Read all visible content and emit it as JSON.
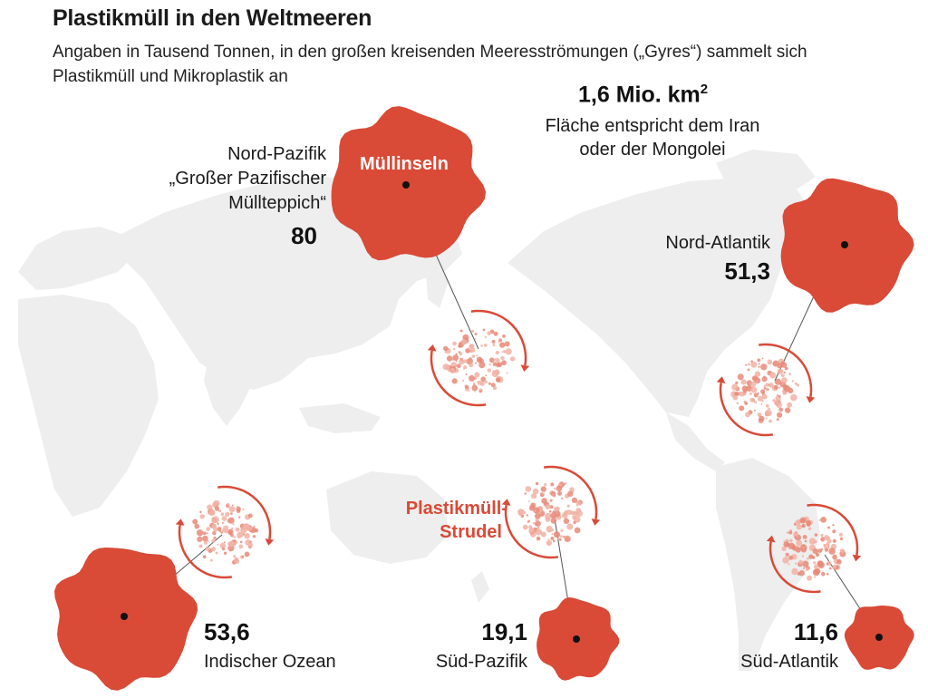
{
  "title": "Plastikmüll in den Weltmeeren",
  "subtitle": "Angaben in Tausend Tonnen, in den großen kreisenden Meeresströmungen („Gyres“) sammelt sich Plastikmüll und Mikroplastik an",
  "area": {
    "value": "1,6 Mio. km",
    "sup": "2",
    "line1": "Fläche entspricht dem Iran",
    "line2": "oder der Mongolei"
  },
  "labels": {
    "muellinseln": "Müllinseln",
    "strudel_line1": "Plastikmüll-",
    "strudel_line2": "Strudel"
  },
  "gyres": {
    "nord_pazifik": {
      "line1": "Nord-Pazifik",
      "line2": "„Großer Pazifischer",
      "line3": "Müllteppich“",
      "value": "80"
    },
    "nord_atlantik": {
      "name": "Nord-Atlantik",
      "value": "51,3"
    },
    "indischer_ozean": {
      "name": "Indischer Ozean",
      "value": "53,6"
    },
    "sued_pazifik": {
      "name": "Süd-Pazifik",
      "value": "19,1"
    },
    "sued_atlantik": {
      "name": "Süd-Atlantik",
      "value": "11,6"
    }
  },
  "colors": {
    "accent": "#d94a37",
    "map": "#eeeeee",
    "text": "#1a1a1a"
  }
}
